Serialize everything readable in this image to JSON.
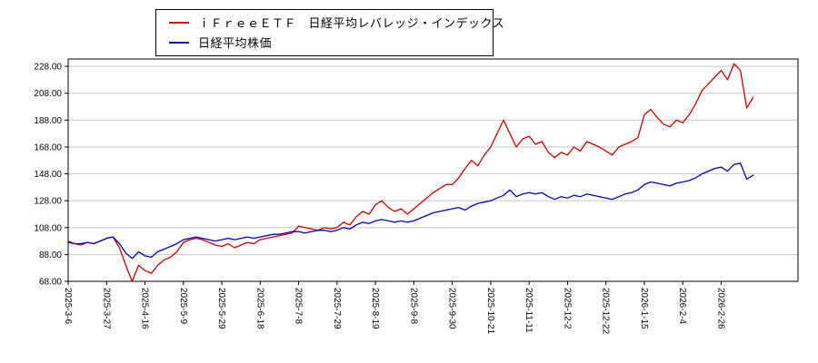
{
  "legend": {
    "items": [
      {
        "label": "ｉＦｒｅｅＥＴＦ　日経平均レバレッジ・インデックス",
        "color": "#cc0000"
      },
      {
        "label": "日経平均株価",
        "color": "#0000bb"
      }
    ]
  },
  "chart_data": {
    "type": "line",
    "title": "",
    "xlabel": "",
    "ylabel": "",
    "grid": "horizontal",
    "legend_position": "top-center",
    "plot_bg": "#ffffff",
    "grid_color": "#c8c8c8",
    "border_color": "#000000",
    "ylim": [
      68,
      233.5
    ],
    "y_ticks": [
      68,
      88,
      108,
      128,
      148,
      168,
      188,
      208,
      228
    ],
    "y_tick_labels": [
      "68.00",
      "88.00",
      "108.00",
      "128.00",
      "148.00",
      "168.00",
      "188.00",
      "208.00",
      "228.00"
    ],
    "x_tick_labels": [
      "2025-3-6",
      "2025-3-27",
      "2025-4-16",
      "2025-5-9",
      "2025-5-29",
      "2025-6-18",
      "2025-7-8",
      "2025-7-29",
      "2025-8-19",
      "2025-9-8",
      "2025-9-30",
      "2025-10-21",
      "2025-11-11",
      "2025-12-2",
      "2025-12-22",
      "2026-1-15",
      "2026-2-4",
      "2026-2-26"
    ],
    "x_tick_interval": 6,
    "x_total_slots": 115,
    "series": [
      {
        "name": "ｉＦｒｅｅＥＴＦ　日経平均レバレッジ・インデックス",
        "color": "#cc0000",
        "values": [
          98,
          96,
          95,
          97,
          96,
          98,
          100,
          101,
          93,
          80,
          68,
          80,
          76,
          74,
          80,
          84,
          86,
          90,
          97,
          99,
          100,
          99,
          97,
          95,
          94,
          96,
          93,
          95,
          97,
          96,
          99,
          100,
          101,
          102,
          103,
          104,
          109,
          108,
          107,
          106,
          108,
          107,
          108,
          112,
          110,
          116,
          120,
          118,
          125,
          128,
          123,
          120,
          122,
          118,
          122,
          126,
          130,
          134,
          137,
          140,
          140,
          145,
          152,
          158,
          154,
          162,
          168,
          178,
          188,
          178,
          168,
          174,
          176,
          170,
          172,
          164,
          160,
          164,
          162,
          168,
          165,
          172,
          170,
          168,
          165,
          162,
          168,
          170,
          172,
          175,
          192,
          196,
          190,
          185,
          183,
          188,
          186,
          192,
          200,
          210,
          215,
          220,
          225,
          218,
          230,
          225,
          197,
          205
        ]
      },
      {
        "name": "日経平均株価",
        "color": "#0000bb",
        "values": [
          97,
          96,
          96,
          97,
          96,
          98,
          100,
          101,
          96,
          89,
          85,
          90,
          87,
          86,
          90,
          92,
          94,
          96,
          99,
          100,
          101,
          100,
          99,
          98,
          99,
          100,
          99,
          100,
          101,
          100,
          101,
          102,
          103,
          103,
          104,
          105,
          105,
          104,
          105,
          106,
          106,
          105,
          106,
          108,
          107,
          110,
          112,
          111,
          113,
          114,
          113,
          112,
          113,
          112,
          113,
          115,
          117,
          119,
          120,
          121,
          122,
          123,
          121,
          124,
          126,
          127,
          128,
          130,
          132,
          136,
          131,
          133,
          134,
          133,
          134,
          131,
          129,
          131,
          130,
          132,
          131,
          133,
          132,
          131,
          130,
          129,
          131,
          133,
          134,
          136,
          140,
          142,
          141,
          140,
          139,
          141,
          142,
          143,
          145,
          148,
          150,
          152,
          153,
          150,
          155,
          156,
          144,
          147
        ]
      }
    ]
  }
}
